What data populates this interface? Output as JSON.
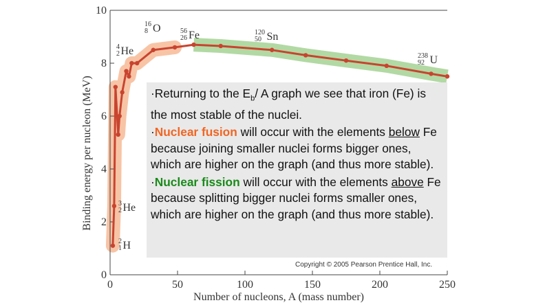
{
  "chart_data": {
    "type": "line",
    "xlabel": "Number of nucleons, A (mass number)",
    "ylabel": "Binding energy per nucleon (MeV)",
    "xlim": [
      0,
      250
    ],
    "ylim": [
      0,
      10
    ],
    "xticks": [
      "0",
      "50",
      "100",
      "150",
      "200",
      "250"
    ],
    "yticks": [
      "0",
      "2",
      "4",
      "6",
      "8",
      "10"
    ],
    "series": [
      {
        "x": [
          2,
          3,
          4,
          6,
          7,
          9,
          12,
          14,
          16,
          20,
          32,
          48,
          62,
          82,
          120,
          145,
          175,
          205,
          238,
          250
        ],
        "y": [
          1.1,
          2.6,
          7.1,
          5.3,
          6.0,
          6.9,
          7.7,
          7.5,
          8.0,
          8.0,
          8.5,
          8.6,
          8.7,
          8.65,
          8.5,
          8.3,
          8.1,
          7.9,
          7.6,
          7.5
        ]
      }
    ],
    "fusion_band_x_max": 60,
    "fission_band_x_min": 56,
    "colors": {
      "curve": "#c8442f",
      "fusion_band": "#f8c4a6",
      "fission_band": "#b2d9a3"
    },
    "nuclide_labels": [
      {
        "A": "2",
        "Z": "1",
        "symbol": "H"
      },
      {
        "A": "3",
        "Z": "2",
        "symbol": "He"
      },
      {
        "A": "4",
        "Z": "2",
        "symbol": "He"
      },
      {
        "A": "16",
        "Z": "8",
        "symbol": "O"
      },
      {
        "A": "56",
        "Z": "26",
        "symbol": "Fe"
      },
      {
        "A": "120",
        "Z": "50",
        "symbol": "Sn"
      },
      {
        "A": "238",
        "Z": "92",
        "symbol": "U"
      }
    ]
  },
  "text": {
    "p1_prefix": "·Returning to the E",
    "p1_sub": "b",
    "p1_suffix": "/ A graph we see that iron (Fe) is the most stable of the nuclei.",
    "p2_bullet": "·",
    "p2_term": "Nuclear fusion",
    "p2_mid": " will occur with the elements ",
    "p2_keyword": "below",
    "p2_rest": " Fe because joining smaller nuclei forms bigger ones, which are higher on the graph (and thus more stable).",
    "p3_bullet": "·",
    "p3_term": "Nuclear fission",
    "p3_mid": " will occur with the elements ",
    "p3_keyword": "above",
    "p3_rest": " Fe because splitting bigger nuclei forms smaller ones, which are higher on the graph (and thus more stable)."
  },
  "copyright": "Copyright © 2005 Pearson Prentice Hall, Inc."
}
